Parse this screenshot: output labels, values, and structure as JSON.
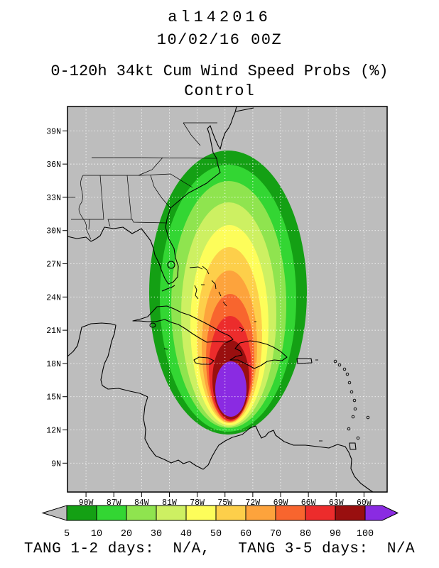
{
  "header": {
    "line1": "al142016",
    "line2": "10/02/16 00Z",
    "line3": "0-120h 34kt Cum Wind Speed Probs (%)",
    "line4": "Control"
  },
  "map": {
    "background": "#bdbdbd",
    "lat_ticks": {
      "labels": [
        "39N",
        "36N",
        "33N",
        "30N",
        "27N",
        "24N",
        "21N",
        "18N",
        "15N",
        "12N",
        "9N"
      ],
      "values": [
        39,
        36,
        33,
        30,
        27,
        24,
        21,
        18,
        15,
        12,
        9
      ]
    },
    "lon_ticks": {
      "labels": [
        "90W",
        "87W",
        "84W",
        "81W",
        "78W",
        "75W",
        "72W",
        "69W",
        "66W",
        "63W",
        "60W"
      ],
      "values": [
        90,
        87,
        84,
        81,
        78,
        75,
        72,
        69,
        66,
        63,
        60
      ]
    }
  },
  "chart_data": {
    "type": "heatmap",
    "title": "0-120h 34kt Cum Wind Speed Probs (%)",
    "subtitle": "Control",
    "storm": "al142016",
    "init_time": "10/02/16 00Z",
    "units": "%",
    "thresholds": [
      5,
      10,
      20,
      30,
      40,
      50,
      60,
      70,
      80,
      90,
      100
    ],
    "band_colors": [
      "#14a014",
      "#33d633",
      "#8fe44f",
      "#cdf062",
      "#fdfd5a",
      "#fdcf4a",
      "#fda33c",
      "#f8652e",
      "#ec2c2c",
      "#990f0f",
      "#8a2be2"
    ],
    "lat_range_n": [
      6.5,
      41.2
    ],
    "lon_range_w": [
      92,
      57.5
    ],
    "description": "Concentric cumulative 34kt wind speed probability contours elongated north-south, centered near 74.5W; outer 5% band spans about 83W-66W and 12N-37N; maximum 100% core near 74.5W 13N-18N south of eastern Cuba/Haiti."
  },
  "colorbar": {
    "tick_labels": [
      "5",
      "10",
      "20",
      "30",
      "40",
      "50",
      "60",
      "70",
      "80",
      "90",
      "100"
    ],
    "under_color": "#bdbdbd"
  },
  "footer": {
    "text": "TANG 1-2 days:  N/A,   TANG 3-5 days:  N/A"
  }
}
